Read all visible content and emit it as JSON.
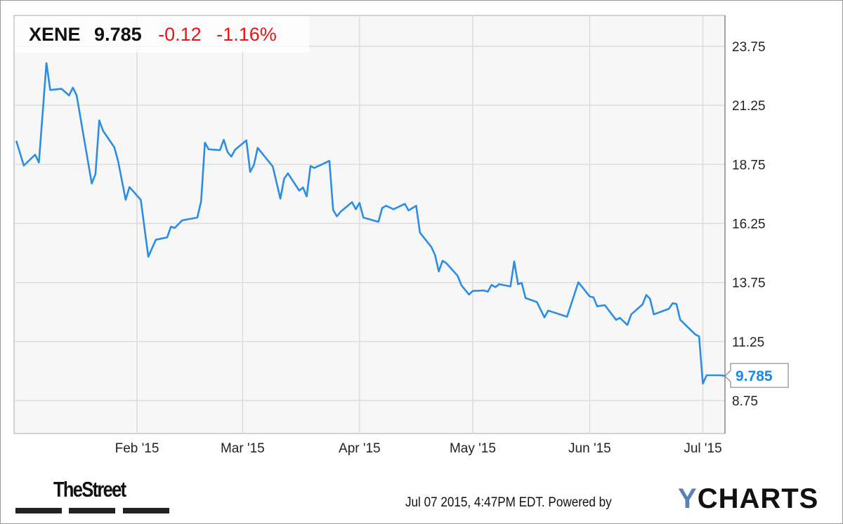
{
  "header": {
    "ticker": "XENE",
    "price": "9.785",
    "change": "-0.12",
    "change_pct": "-1.16%"
  },
  "colors": {
    "line": "#2b8de3",
    "negative": "#ee1111",
    "grid": "#dddddd",
    "plot_bg": "#f7f7f7"
  },
  "chart_data": {
    "type": "line",
    "title": "",
    "xlabel": "",
    "ylabel": "",
    "ylim": [
      7.5,
      24.6
    ],
    "y_ticks": [
      "23.75",
      "21.25",
      "18.75",
      "16.25",
      "13.75",
      "11.25",
      "8.75"
    ],
    "x_ticks": [
      {
        "label": "Feb '15",
        "date": "2015-02-01"
      },
      {
        "label": "Mar '15",
        "date": "2015-03-01"
      },
      {
        "label": "Apr '15",
        "date": "2015-04-01"
      },
      {
        "label": "May '15",
        "date": "2015-05-01"
      },
      {
        "label": "Jun '15",
        "date": "2015-06-01"
      },
      {
        "label": "Jul '15",
        "date": "2015-07-01"
      }
    ],
    "grid": true,
    "y_axis_position": "right",
    "last_value_label": "9.785",
    "series": [
      {
        "points": [
          [
            "2014-12-31",
            19.75
          ],
          [
            "2015-01-02",
            18.7
          ],
          [
            "2015-01-05",
            19.16
          ],
          [
            "2015-01-06",
            18.83
          ],
          [
            "2015-01-08",
            23.04
          ],
          [
            "2015-01-09",
            21.9
          ],
          [
            "2015-01-12",
            21.95
          ],
          [
            "2015-01-14",
            21.67
          ],
          [
            "2015-01-15",
            22.0
          ],
          [
            "2015-01-16",
            21.67
          ],
          [
            "2015-01-20",
            17.94
          ],
          [
            "2015-01-21",
            18.34
          ],
          [
            "2015-01-22",
            20.61
          ],
          [
            "2015-01-23",
            20.17
          ],
          [
            "2015-01-26",
            19.47
          ],
          [
            "2015-01-27",
            18.88
          ],
          [
            "2015-01-29",
            17.25
          ],
          [
            "2015-01-30",
            17.79
          ],
          [
            "2015-02-02",
            17.25
          ],
          [
            "2015-02-04",
            14.84
          ],
          [
            "2015-02-06",
            15.56
          ],
          [
            "2015-02-09",
            15.66
          ],
          [
            "2015-02-10",
            16.11
          ],
          [
            "2015-02-11",
            16.06
          ],
          [
            "2015-02-13",
            16.38
          ],
          [
            "2015-02-17",
            16.5
          ],
          [
            "2015-02-18",
            17.19
          ],
          [
            "2015-02-19",
            19.67
          ],
          [
            "2015-02-20",
            19.39
          ],
          [
            "2015-02-23",
            19.35
          ],
          [
            "2015-02-24",
            19.79
          ],
          [
            "2015-02-25",
            19.27
          ],
          [
            "2015-02-26",
            19.08
          ],
          [
            "2015-02-27",
            19.37
          ],
          [
            "2015-03-02",
            19.77
          ],
          [
            "2015-03-03",
            18.43
          ],
          [
            "2015-03-04",
            18.73
          ],
          [
            "2015-03-05",
            19.45
          ],
          [
            "2015-03-09",
            18.66
          ],
          [
            "2015-03-11",
            17.3
          ],
          [
            "2015-03-12",
            18.14
          ],
          [
            "2015-03-13",
            18.37
          ],
          [
            "2015-03-16",
            17.64
          ],
          [
            "2015-03-17",
            17.77
          ],
          [
            "2015-03-18",
            17.39
          ],
          [
            "2015-03-19",
            18.68
          ],
          [
            "2015-03-20",
            18.6
          ],
          [
            "2015-03-24",
            18.9
          ],
          [
            "2015-03-25",
            16.82
          ],
          [
            "2015-03-26",
            16.55
          ],
          [
            "2015-03-27",
            16.75
          ],
          [
            "2015-03-30",
            17.15
          ],
          [
            "2015-03-31",
            16.85
          ],
          [
            "2015-04-01",
            17.12
          ],
          [
            "2015-04-02",
            16.5
          ],
          [
            "2015-04-06",
            16.32
          ],
          [
            "2015-04-07",
            16.9
          ],
          [
            "2015-04-08",
            17.0
          ],
          [
            "2015-04-10",
            16.85
          ],
          [
            "2015-04-13",
            17.08
          ],
          [
            "2015-04-14",
            16.8
          ],
          [
            "2015-04-16",
            17.0
          ],
          [
            "2015-04-17",
            15.86
          ],
          [
            "2015-04-20",
            15.26
          ],
          [
            "2015-04-21",
            14.92
          ],
          [
            "2015-04-22",
            14.22
          ],
          [
            "2015-04-23",
            14.67
          ],
          [
            "2015-04-24",
            14.57
          ],
          [
            "2015-04-27",
            14.03
          ],
          [
            "2015-04-28",
            13.63
          ],
          [
            "2015-04-30",
            13.24
          ],
          [
            "2015-05-01",
            13.39
          ],
          [
            "2015-05-04",
            13.41
          ],
          [
            "2015-05-05",
            13.36
          ],
          [
            "2015-05-06",
            13.65
          ],
          [
            "2015-05-07",
            13.55
          ],
          [
            "2015-05-08",
            13.68
          ],
          [
            "2015-05-11",
            13.58
          ],
          [
            "2015-05-12",
            14.64
          ],
          [
            "2015-05-13",
            13.68
          ],
          [
            "2015-05-14",
            13.73
          ],
          [
            "2015-05-15",
            13.09
          ],
          [
            "2015-05-18",
            12.92
          ],
          [
            "2015-05-20",
            12.27
          ],
          [
            "2015-05-21",
            12.56
          ],
          [
            "2015-05-26",
            12.3
          ],
          [
            "2015-05-29",
            13.76
          ],
          [
            "2015-06-01",
            13.16
          ],
          [
            "2015-06-02",
            13.12
          ],
          [
            "2015-06-03",
            12.74
          ],
          [
            "2015-06-05",
            12.79
          ],
          [
            "2015-06-08",
            12.17
          ],
          [
            "2015-06-09",
            12.25
          ],
          [
            "2015-06-11",
            11.95
          ],
          [
            "2015-06-12",
            12.4
          ],
          [
            "2015-06-15",
            12.82
          ],
          [
            "2015-06-16",
            13.22
          ],
          [
            "2015-06-17",
            13.06
          ],
          [
            "2015-06-18",
            12.4
          ],
          [
            "2015-06-22",
            12.64
          ],
          [
            "2015-06-23",
            12.87
          ],
          [
            "2015-06-24",
            12.84
          ],
          [
            "2015-06-25",
            12.17
          ],
          [
            "2015-06-29",
            11.55
          ],
          [
            "2015-06-30",
            11.47
          ],
          [
            "2015-07-01",
            9.47
          ],
          [
            "2015-07-02",
            9.82
          ],
          [
            "2015-07-06",
            9.82
          ],
          [
            "2015-07-07",
            9.785
          ]
        ]
      }
    ]
  },
  "footer": {
    "brand_left": "TheStreet",
    "timestamp": "Jul 07 2015, 4:47PM EDT.",
    "powered_by": "Powered by",
    "brand_right_y": "Y",
    "brand_right_rest": "CHARTS"
  }
}
